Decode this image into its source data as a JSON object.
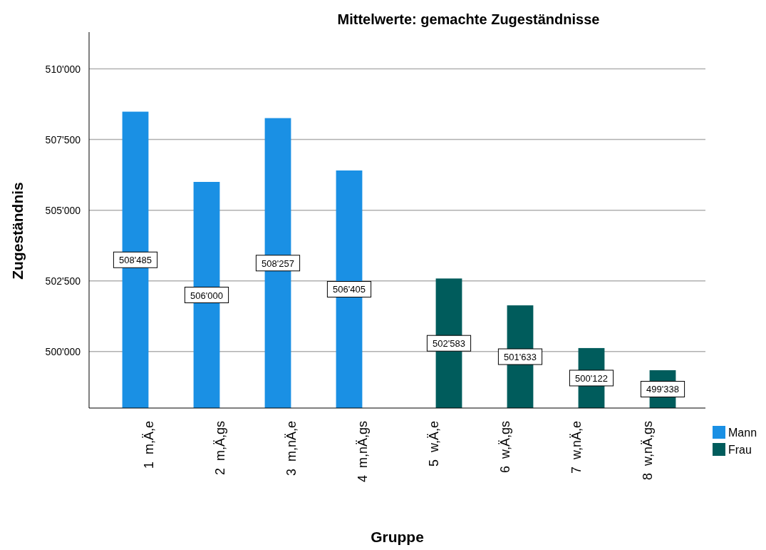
{
  "chart_data": {
    "type": "bar",
    "title": "Mittelwerte: gemachte Zugeständnisse",
    "xlabel": "Gruppe",
    "ylabel": "Zugeständnis",
    "categories": [
      "1  m,Ä,e",
      "2  m,Ä,gs",
      "3  m,nÄ,e",
      "4  m,nÄ,gs",
      "5  w,Ä,e",
      "6  w,Ä,gs",
      "7  w,nÄ,e",
      "8  w,nÄ,gs"
    ],
    "series": [
      {
        "name": "Mann",
        "color": "#1a90e4",
        "values": [
          508485,
          506000,
          508257,
          506405,
          null,
          null,
          null,
          null
        ],
        "value_labels": [
          "508'485",
          "506'000",
          "508'257",
          "506'405",
          null,
          null,
          null,
          null
        ]
      },
      {
        "name": "Frau",
        "color": "#005c5c",
        "values": [
          null,
          null,
          null,
          null,
          502583,
          501633,
          500122,
          499338
        ],
        "value_labels": [
          null,
          null,
          null,
          null,
          "502'583",
          "501'633",
          "500'122",
          "499'338"
        ]
      }
    ],
    "ylim": [
      498000,
      511300
    ],
    "yticks": [
      {
        "value": 500000,
        "label": "500'000"
      },
      {
        "value": 502500,
        "label": "502'500"
      },
      {
        "value": 505000,
        "label": "505'000"
      },
      {
        "value": 507500,
        "label": "507'500"
      },
      {
        "value": 510000,
        "label": "510'000"
      }
    ],
    "grid": "y",
    "legend": "right"
  }
}
